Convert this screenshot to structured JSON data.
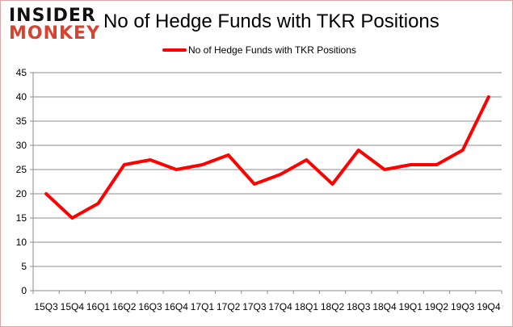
{
  "logo": {
    "line1": "INSIDER",
    "line2": "MONKEY"
  },
  "chart_data": {
    "type": "line",
    "title": "No of Hedge Funds with TKR Positions",
    "xlabel": "",
    "ylabel": "",
    "categories": [
      "15Q3",
      "15Q4",
      "16Q1",
      "16Q2",
      "16Q3",
      "16Q4",
      "17Q1",
      "17Q2",
      "17Q3",
      "17Q4",
      "18Q1",
      "18Q2",
      "18Q3",
      "18Q4",
      "19Q1",
      "19Q2",
      "19Q3",
      "19Q4"
    ],
    "series": [
      {
        "name": "No of Hedge Funds with TKR Positions",
        "color": "#ff0000",
        "values": [
          20,
          15,
          18,
          26,
          27,
          25,
          26,
          28,
          22,
          24,
          27,
          22,
          29,
          25,
          26,
          26,
          29,
          40
        ]
      }
    ],
    "ylim": [
      0,
      45
    ],
    "yticks": [
      0,
      5,
      10,
      15,
      20,
      25,
      30,
      35,
      40,
      45
    ],
    "grid": true,
    "legend": "top-center"
  }
}
